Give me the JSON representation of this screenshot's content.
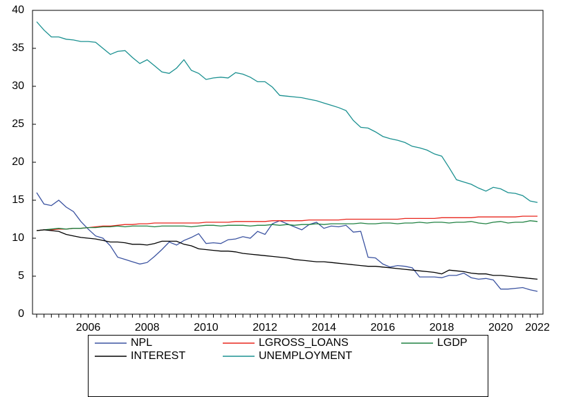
{
  "chart_data": {
    "type": "line",
    "categories": [
      null,
      null,
      null,
      null,
      null,
      null,
      null,
      "2006",
      null,
      null,
      null,
      null,
      null,
      null,
      null,
      "2008",
      null,
      null,
      null,
      null,
      null,
      null,
      null,
      "2010",
      null,
      null,
      null,
      null,
      null,
      null,
      null,
      "2012",
      null,
      null,
      null,
      null,
      null,
      null,
      null,
      "2014",
      null,
      null,
      null,
      null,
      null,
      null,
      null,
      "2016",
      null,
      null,
      null,
      null,
      null,
      null,
      null,
      "2018",
      null,
      null,
      null,
      null,
      null,
      null,
      null,
      "2020",
      null,
      null,
      null,
      null,
      "2022"
    ],
    "ylim": [
      0,
      40
    ],
    "yticks": [
      0,
      5,
      10,
      15,
      20,
      25,
      30,
      35,
      40
    ],
    "grid": false,
    "legend": "bottom",
    "series": [
      {
        "name": "NPL",
        "color": "#3a52a0",
        "values": [
          16.0,
          14.5,
          14.3,
          15.0,
          14.1,
          13.5,
          12.2,
          11.2,
          10.3,
          10.0,
          9.0,
          7.5,
          7.2,
          6.9,
          6.6,
          6.8,
          7.6,
          8.5,
          9.5,
          9.1,
          9.7,
          10.1,
          10.6,
          9.3,
          9.4,
          9.3,
          9.8,
          9.9,
          10.2,
          10.0,
          10.9,
          10.5,
          11.9,
          12.3,
          11.9,
          11.5,
          11.1,
          11.8,
          12.1,
          11.3,
          11.6,
          11.5,
          11.7,
          10.8,
          10.9,
          7.5,
          7.4,
          6.6,
          6.2,
          6.4,
          6.3,
          6.1,
          4.9,
          4.9,
          4.9,
          4.8,
          5.1,
          5.1,
          5.4,
          4.8,
          4.6,
          4.7,
          4.5,
          3.3,
          3.3,
          3.4,
          3.5,
          3.2,
          3.0
        ]
      },
      {
        "name": "LGROSS_LOANS",
        "color": "#e8251c",
        "values": [
          11.0,
          11.1,
          11.1,
          11.2,
          11.2,
          11.3,
          11.3,
          11.4,
          11.5,
          11.6,
          11.6,
          11.7,
          11.8,
          11.8,
          11.9,
          11.9,
          12.0,
          12.0,
          12.0,
          12.0,
          12.0,
          12.0,
          12.0,
          12.1,
          12.1,
          12.1,
          12.1,
          12.2,
          12.2,
          12.2,
          12.2,
          12.2,
          12.3,
          12.3,
          12.3,
          12.3,
          12.3,
          12.4,
          12.4,
          12.4,
          12.4,
          12.4,
          12.5,
          12.5,
          12.5,
          12.5,
          12.5,
          12.5,
          12.5,
          12.5,
          12.6,
          12.6,
          12.6,
          12.6,
          12.6,
          12.7,
          12.7,
          12.7,
          12.7,
          12.7,
          12.8,
          12.8,
          12.8,
          12.8,
          12.8,
          12.8,
          12.9,
          12.9,
          12.9
        ]
      },
      {
        "name": "LGDP",
        "color": "#1e8040",
        "values": [
          11.0,
          11.1,
          11.2,
          11.3,
          11.2,
          11.3,
          11.3,
          11.4,
          11.4,
          11.5,
          11.5,
          11.6,
          11.5,
          11.6,
          11.6,
          11.6,
          11.5,
          11.6,
          11.6,
          11.6,
          11.6,
          11.5,
          11.6,
          11.7,
          11.7,
          11.6,
          11.7,
          11.7,
          11.7,
          11.6,
          11.7,
          11.7,
          11.8,
          11.7,
          11.8,
          11.7,
          11.8,
          11.8,
          11.9,
          11.8,
          11.9,
          11.9,
          11.9,
          11.9,
          12.0,
          11.9,
          11.9,
          12.0,
          12.0,
          11.9,
          12.0,
          12.0,
          12.1,
          12.0,
          12.1,
          12.1,
          12.0,
          12.1,
          12.1,
          12.2,
          12.0,
          11.9,
          12.1,
          12.2,
          12.0,
          12.1,
          12.1,
          12.3,
          12.2
        ]
      },
      {
        "name": "INTEREST",
        "color": "#000000",
        "values": [
          11.0,
          11.1,
          11.0,
          10.9,
          10.5,
          10.3,
          10.1,
          10.0,
          9.9,
          9.7,
          9.5,
          9.5,
          9.4,
          9.2,
          9.2,
          9.1,
          9.3,
          9.6,
          9.6,
          9.6,
          9.2,
          9.0,
          8.6,
          8.5,
          8.4,
          8.3,
          8.3,
          8.2,
          8.0,
          7.9,
          7.8,
          7.7,
          7.6,
          7.5,
          7.4,
          7.2,
          7.1,
          7.0,
          6.9,
          6.9,
          6.8,
          6.7,
          6.6,
          6.5,
          6.4,
          6.3,
          6.3,
          6.2,
          6.1,
          6.0,
          5.9,
          5.8,
          5.7,
          5.6,
          5.5,
          5.3,
          5.8,
          5.7,
          5.6,
          5.4,
          5.3,
          5.3,
          5.1,
          5.1,
          5.0,
          4.9,
          4.8,
          4.7,
          4.6
        ]
      },
      {
        "name": "UNEMPLOYMENT",
        "color": "#1a9090",
        "values": [
          38.5,
          37.4,
          36.5,
          36.5,
          36.2,
          36.1,
          35.9,
          35.9,
          35.8,
          35.0,
          34.2,
          34.6,
          34.7,
          33.8,
          33.0,
          33.5,
          32.7,
          31.9,
          31.7,
          32.4,
          33.5,
          32.1,
          31.7,
          30.9,
          31.1,
          31.2,
          31.1,
          31.8,
          31.6,
          31.2,
          30.6,
          30.6,
          29.9,
          28.8,
          28.7,
          28.6,
          28.5,
          28.3,
          28.1,
          27.8,
          27.5,
          27.2,
          26.8,
          25.5,
          24.6,
          24.5,
          24.0,
          23.4,
          23.1,
          22.9,
          22.6,
          22.1,
          21.9,
          21.6,
          21.1,
          20.8,
          19.3,
          17.7,
          17.4,
          17.1,
          16.6,
          16.2,
          16.7,
          16.5,
          16.0,
          15.9,
          15.6,
          14.9,
          14.7
        ]
      }
    ]
  }
}
